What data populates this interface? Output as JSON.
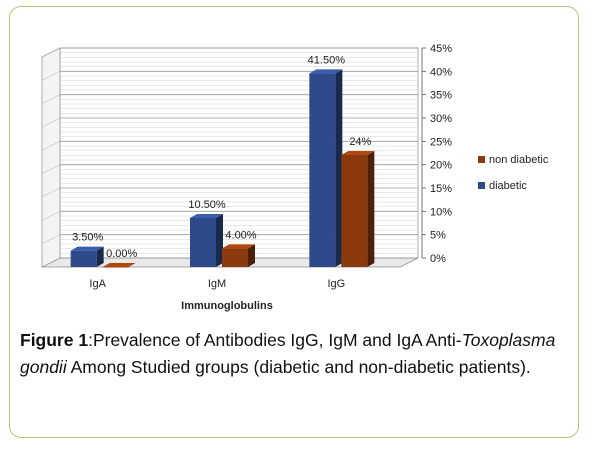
{
  "chart_data": {
    "type": "bar",
    "categories": [
      "IgA",
      "IgM",
      "IgG"
    ],
    "series": [
      {
        "name": "diabetic",
        "values": [
          3.5,
          10.5,
          41.5
        ],
        "labels": [
          "3.50%",
          "10.50%",
          "41.50%"
        ],
        "color": "#2e4a8b"
      },
      {
        "name": "non diabetic",
        "values": [
          0,
          4,
          24
        ],
        "labels": [
          "0.00%",
          "4.00%",
          "24%"
        ],
        "color": "#8b3a0e"
      }
    ],
    "xlabel": "Immunoglobulins",
    "ylabel": "",
    "ylim": [
      0,
      45
    ],
    "yticks": [
      "0%",
      "5%",
      "10%",
      "15%",
      "20%",
      "25%",
      "30%",
      "35%",
      "40%",
      "45%"
    ],
    "grid": true,
    "three_d": true,
    "legend_position": "right"
  },
  "caption": {
    "label": "Figure 1",
    "text_part1": ":Prevalence of Antibodies IgG, IgM and IgA Anti-",
    "italic": "Toxoplasma gondii",
    "text_part2": " Among Studied groups (diabetic and non-diabetic patients)."
  }
}
